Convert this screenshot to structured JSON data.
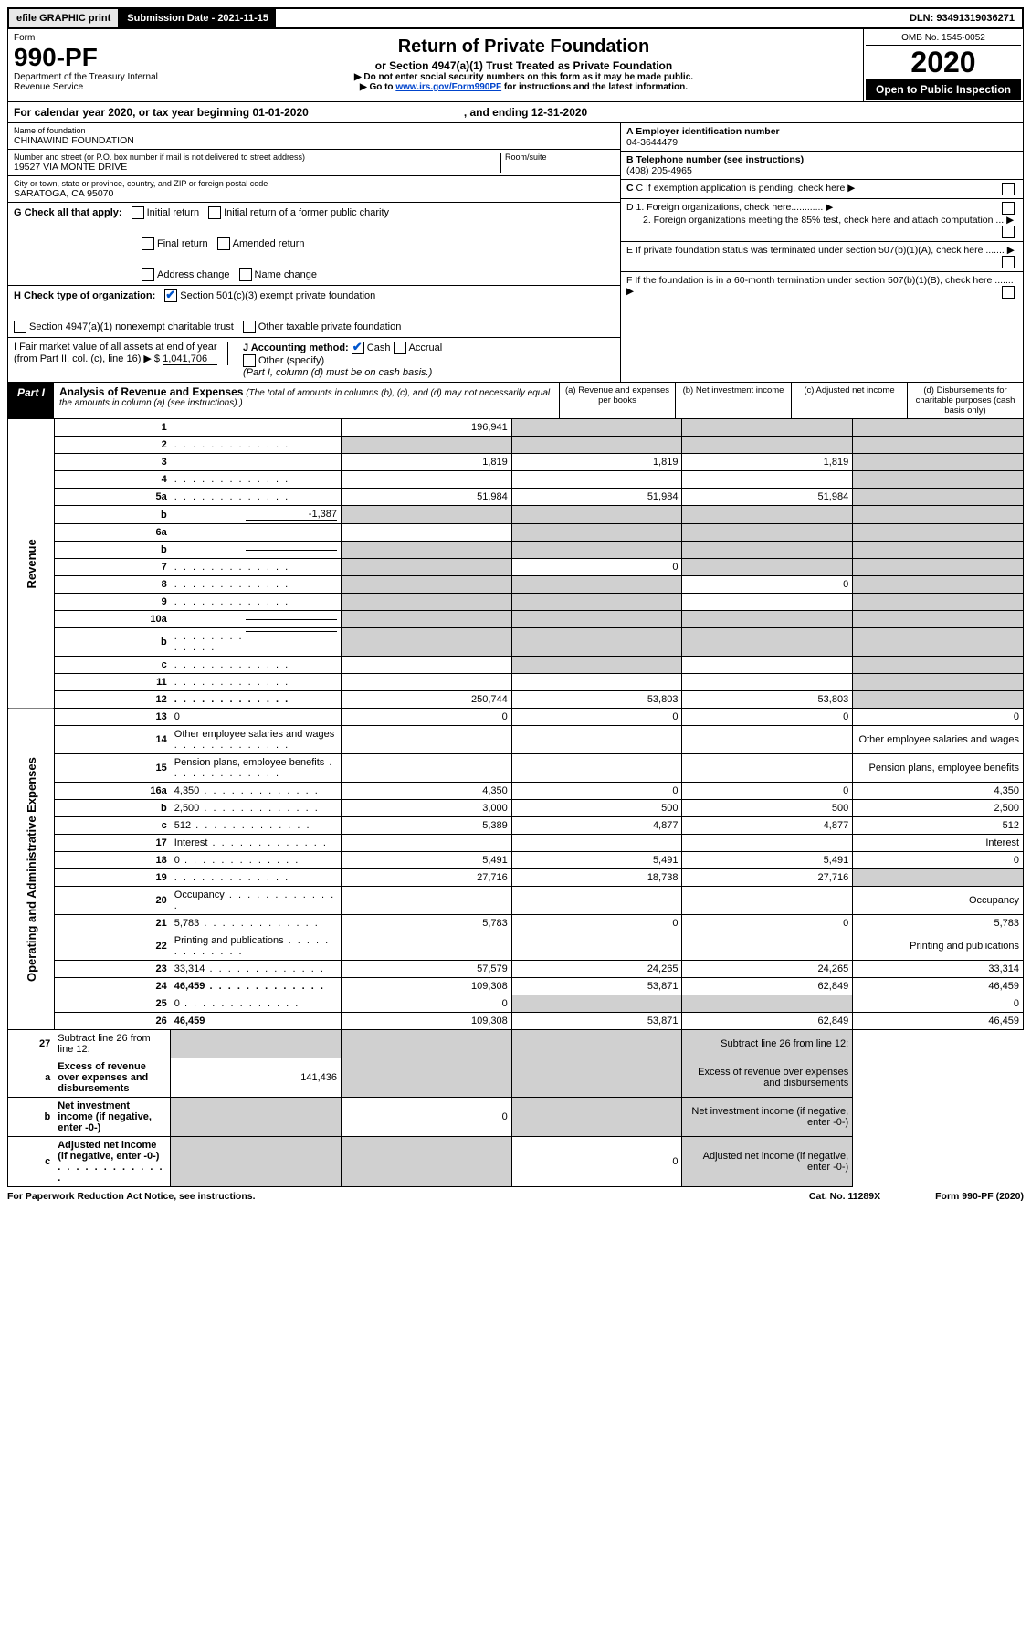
{
  "top": {
    "efile": "efile GRAPHIC print",
    "sub_date_label": "Submission Date - 2021-11-15",
    "dln": "DLN: 93491319036271"
  },
  "header": {
    "form_label": "Form",
    "form_number": "990-PF",
    "dept": "Department of the Treasury\nInternal Revenue Service",
    "title": "Return of Private Foundation",
    "subtitle": "or Section 4947(a)(1) Trust Treated as Private Foundation",
    "note1": "▶ Do not enter social security numbers on this form as it may be made public.",
    "note2_pre": "▶ Go to ",
    "note2_link": "www.irs.gov/Form990PF",
    "note2_post": " for instructions and the latest information.",
    "omb": "OMB No. 1545-0052",
    "year": "2020",
    "open": "Open to Public Inspection"
  },
  "cal": {
    "text_a": "For calendar year 2020, or tax year beginning 01-01-2020",
    "text_b": ", and ending 12-31-2020"
  },
  "info": {
    "name_label": "Name of foundation",
    "name": "CHINAWIND FOUNDATION",
    "addr_label": "Number and street (or P.O. box number if mail is not delivered to street address)",
    "addr": "19527 VIA MONTE DRIVE",
    "room_label": "Room/suite",
    "city_label": "City or town, state or province, country, and ZIP or foreign postal code",
    "city": "SARATOGA, CA  95070",
    "ein_label": "A Employer identification number",
    "ein": "04-3644479",
    "phone_label": "B Telephone number (see instructions)",
    "phone": "(408) 205-4965",
    "c": "C If exemption application is pending, check here",
    "d1": "D 1. Foreign organizations, check here............",
    "d2": "2. Foreign organizations meeting the 85% test, check here and attach computation ...",
    "e": "E If private foundation status was terminated under section 507(b)(1)(A), check here .......",
    "f": "F If the foundation is in a 60-month termination under section 507(b)(1)(B), check here ......."
  },
  "g": {
    "label": "G Check all that apply:",
    "opts": [
      "Initial return",
      "Final return",
      "Address change",
      "Initial return of a former public charity",
      "Amended return",
      "Name change"
    ]
  },
  "h": {
    "label": "H Check type of organization:",
    "opt1": "Section 501(c)(3) exempt private foundation",
    "opt2": "Section 4947(a)(1) nonexempt charitable trust",
    "opt3": "Other taxable private foundation"
  },
  "i": {
    "label": "I Fair market value of all assets at end of year (from Part II, col. (c), line 16) ▶ $",
    "value": "1,041,706"
  },
  "j": {
    "label": "J Accounting method:",
    "cash": "Cash",
    "accrual": "Accrual",
    "other": "Other (specify)",
    "note": "(Part I, column (d) must be on cash basis.)"
  },
  "part1": {
    "label": "Part I",
    "title": "Analysis of Revenue and Expenses",
    "desc": "(The total of amounts in columns (b), (c), and (d) may not necessarily equal the amounts in column (a) (see instructions).)",
    "col_a": "(a) Revenue and expenses per books",
    "col_b": "(b) Net investment income",
    "col_c": "(c) Adjusted net income",
    "col_d": "(d) Disbursements for charitable purposes (cash basis only)"
  },
  "side": {
    "revenue": "Revenue",
    "expenses": "Operating and Administrative Expenses"
  },
  "rows": [
    {
      "n": "1",
      "d": "",
      "a": "196,941",
      "b": "",
      "c": "",
      "greyB": true,
      "greyC": true,
      "greyD": true
    },
    {
      "n": "2",
      "d": "",
      "a": "",
      "b": "",
      "c": "",
      "greyA": true,
      "greyB": true,
      "greyC": true,
      "greyD": true,
      "bold": false,
      "dots": true
    },
    {
      "n": "3",
      "d": "",
      "a": "1,819",
      "b": "1,819",
      "c": "1,819",
      "greyD": true
    },
    {
      "n": "4",
      "d": "",
      "a": "",
      "b": "",
      "c": "",
      "greyD": true,
      "dots": true
    },
    {
      "n": "5a",
      "d": "",
      "a": "51,984",
      "b": "51,984",
      "c": "51,984",
      "greyD": true,
      "dots": true
    },
    {
      "n": "b",
      "d": "",
      "a": "",
      "b": "",
      "c": "",
      "greyA": true,
      "greyB": true,
      "greyC": true,
      "greyD": true,
      "inline": "-1,387"
    },
    {
      "n": "6a",
      "d": "",
      "a": "",
      "b": "",
      "c": "",
      "greyB": true,
      "greyC": true,
      "greyD": true
    },
    {
      "n": "b",
      "d": "",
      "a": "",
      "b": "",
      "c": "",
      "greyA": true,
      "greyB": true,
      "greyC": true,
      "greyD": true,
      "inlineBlank": true
    },
    {
      "n": "7",
      "d": "",
      "a": "",
      "b": "0",
      "c": "",
      "greyA": true,
      "greyC": true,
      "greyD": true,
      "dots": true
    },
    {
      "n": "8",
      "d": "",
      "a": "",
      "b": "",
      "c": "0",
      "greyA": true,
      "greyB": true,
      "greyD": true,
      "dots": true
    },
    {
      "n": "9",
      "d": "",
      "a": "",
      "b": "",
      "c": "",
      "greyA": true,
      "greyB": true,
      "greyD": true,
      "dots": true
    },
    {
      "n": "10a",
      "d": "",
      "a": "",
      "b": "",
      "c": "",
      "greyA": true,
      "greyB": true,
      "greyC": true,
      "greyD": true,
      "inlineBlank": true
    },
    {
      "n": "b",
      "d": "",
      "a": "",
      "b": "",
      "c": "",
      "greyA": true,
      "greyB": true,
      "greyC": true,
      "greyD": true,
      "dots": true,
      "inlineBlank": true
    },
    {
      "n": "c",
      "d": "",
      "a": "",
      "b": "",
      "c": "",
      "greyB": true,
      "greyD": true,
      "dots": true
    },
    {
      "n": "11",
      "d": "",
      "a": "",
      "b": "",
      "c": "",
      "greyD": true,
      "dots": true
    },
    {
      "n": "12",
      "d": "",
      "a": "250,744",
      "b": "53,803",
      "c": "53,803",
      "bold": true,
      "greyD": true,
      "dots": true
    }
  ],
  "exp_rows": [
    {
      "n": "13",
      "d": "0",
      "a": "0",
      "b": "0",
      "c": "0"
    },
    {
      "n": "14",
      "d": "Other employee salaries and wages",
      "dots": true
    },
    {
      "n": "15",
      "d": "Pension plans, employee benefits",
      "dots": true
    },
    {
      "n": "16a",
      "d": "4,350",
      "a": "4,350",
      "b": "0",
      "c": "0",
      "dots": true
    },
    {
      "n": "b",
      "d": "2,500",
      "a": "3,000",
      "b": "500",
      "c": "500",
      "dots": true
    },
    {
      "n": "c",
      "d": "512",
      "a": "5,389",
      "b": "4,877",
      "c": "4,877",
      "dots": true
    },
    {
      "n": "17",
      "d": "Interest",
      "dots": true
    },
    {
      "n": "18",
      "d": "0",
      "a": "5,491",
      "b": "5,491",
      "c": "5,491",
      "dots": true
    },
    {
      "n": "19",
      "d": "",
      "a": "27,716",
      "b": "18,738",
      "c": "27,716",
      "greyD": true,
      "dots": true
    },
    {
      "n": "20",
      "d": "Occupancy",
      "dots": true
    },
    {
      "n": "21",
      "d": "5,783",
      "a": "5,783",
      "b": "0",
      "c": "0",
      "dots": true
    },
    {
      "n": "22",
      "d": "Printing and publications",
      "dots": true
    },
    {
      "n": "23",
      "d": "33,314",
      "a": "57,579",
      "b": "24,265",
      "c": "24,265",
      "dots": true
    },
    {
      "n": "24",
      "d": "46,459",
      "a": "109,308",
      "b": "53,871",
      "c": "62,849",
      "bold": true,
      "dots": true
    },
    {
      "n": "25",
      "d": "0",
      "a": "0",
      "b": "",
      "c": "",
      "greyB": true,
      "greyC": true,
      "dots": true
    },
    {
      "n": "26",
      "d": "46,459",
      "a": "109,308",
      "b": "53,871",
      "c": "62,849",
      "bold": true
    }
  ],
  "final_rows": [
    {
      "n": "27",
      "d": "Subtract line 26 from line 12:",
      "greyA": true,
      "greyB": true,
      "greyC": true,
      "greyD": true
    },
    {
      "n": "a",
      "d": "Excess of revenue over expenses and disbursements",
      "a": "141,436",
      "greyB": true,
      "greyC": true,
      "greyD": true,
      "bold": true
    },
    {
      "n": "b",
      "d": "Net investment income (if negative, enter -0-)",
      "b": "0",
      "greyA": true,
      "greyC": true,
      "greyD": true,
      "bold": true
    },
    {
      "n": "c",
      "d": "Adjusted net income (if negative, enter -0-)",
      "c": "0",
      "greyA": true,
      "greyB": true,
      "greyD": true,
      "bold": true,
      "dots": true
    }
  ],
  "footer": {
    "left": "For Paperwork Reduction Act Notice, see instructions.",
    "mid": "Cat. No. 11289X",
    "right": "Form 990-PF (2020)"
  }
}
